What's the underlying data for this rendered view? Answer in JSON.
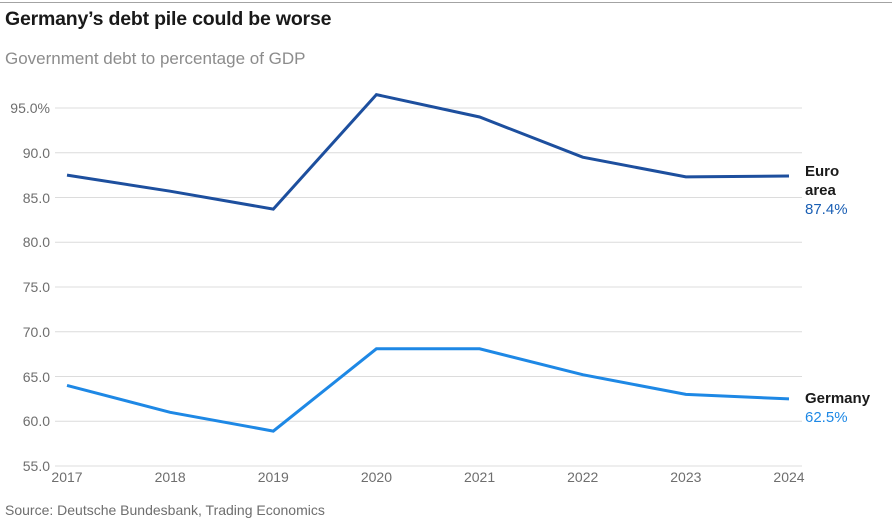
{
  "chart_data": {
    "type": "line",
    "title": "Germany’s debt pile could be worse",
    "subtitle": "Government debt to percentage of GDP",
    "x": [
      2017,
      2018,
      2019,
      2020,
      2021,
      2022,
      2023,
      2024
    ],
    "series": [
      {
        "name": "Euro area",
        "values": [
          87.5,
          85.7,
          83.7,
          96.5,
          94.0,
          89.5,
          87.3,
          87.4
        ],
        "color": "#1d4f9e",
        "value_color": "#1a5fb4",
        "end_value": "87.4%"
      },
      {
        "name": "Germany",
        "values": [
          64.0,
          61.0,
          58.9,
          68.1,
          68.1,
          65.2,
          63.0,
          62.5
        ],
        "color": "#1e88e5",
        "value_color": "#1e88e5",
        "end_value": "62.5%"
      }
    ],
    "y_axis": {
      "ticks": [
        {
          "value": 95,
          "label": "95.0%"
        },
        {
          "value": 90,
          "label": "90.0"
        },
        {
          "value": 85,
          "label": "85.0"
        },
        {
          "value": 80,
          "label": "80.0"
        },
        {
          "value": 75,
          "label": "75.0"
        },
        {
          "value": 70,
          "label": "70.0"
        },
        {
          "value": 65,
          "label": "65.0"
        },
        {
          "value": 60,
          "label": "60.0"
        },
        {
          "value": 55,
          "label": "55.0"
        }
      ],
      "range": [
        55,
        97.5
      ]
    },
    "grid": true,
    "gridline_color": "#dcdcdc",
    "legend_position": "right-end-labels"
  },
  "source": "Source: Deutsche Bundesbank, Trading Economics"
}
